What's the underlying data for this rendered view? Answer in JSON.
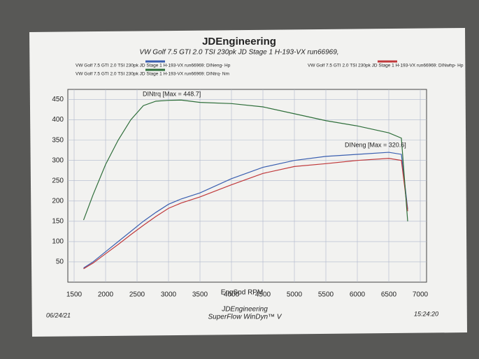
{
  "chart_data": {
    "type": "line",
    "title": "JDEngineering",
    "subtitle": "VW Golf 7.5 GTI 2.0 TSI 230pk  JD Stage 1  H-193-VX  run66969,",
    "x_label": "EngSpd  RPM",
    "x": [
      1650,
      1800,
      2000,
      2200,
      2400,
      2600,
      2800,
      3000,
      3200,
      3500,
      4000,
      4500,
      5000,
      5500,
      6000,
      6500,
      6700,
      6800
    ],
    "series": [
      {
        "name": "VW Golf 7.5 GTI 2.0 TSI 230pk   JD Stage 1    H-193-VX    run66969: DINeng- Hp",
        "color": "#3a5fb0",
        "values": [
          35,
          50,
          75,
          100,
          125,
          150,
          172,
          192,
          205,
          220,
          255,
          283,
          300,
          310,
          315,
          320,
          315,
          180
        ]
      },
      {
        "name": "VW Golf 7.5 GTI 2.0 TSI 230pk   JD Stage 1    H-193-VX    run66969: DINwhp- Hp",
        "color": "#c0393b",
        "values": [
          33,
          47,
          70,
          93,
          117,
          140,
          162,
          182,
          195,
          210,
          240,
          268,
          285,
          292,
          300,
          305,
          300,
          175
        ]
      },
      {
        "name": "VW Golf 7.5 GTI 2.0 TSI 230pk   JD Stage 1    H-193-VX    run66969: DINtrq- Nm",
        "color": "#2e6e3a",
        "values": [
          153,
          215,
          290,
          350,
          400,
          435,
          446,
          448,
          448.7,
          443,
          440,
          432,
          415,
          398,
          385,
          368,
          355,
          150
        ]
      }
    ],
    "annotations": [
      "DINtrq [Max = 448.7]",
      "DINeng [Max = 320.6]"
    ],
    "xlim": [
      1400,
      7100
    ],
    "xticks": [
      1500,
      2000,
      2500,
      3000,
      3500,
      4000,
      4500,
      5000,
      5500,
      6000,
      6500,
      7000
    ],
    "ylim": [
      0,
      475
    ],
    "yticks": [
      50,
      100,
      150,
      200,
      250,
      300,
      350,
      400,
      450
    ],
    "grid": true,
    "footer": {
      "date": "06/24/21",
      "company": "JDEngineering",
      "software": "SuperFlow WinDyn™ V",
      "time": "15:24:20"
    }
  }
}
